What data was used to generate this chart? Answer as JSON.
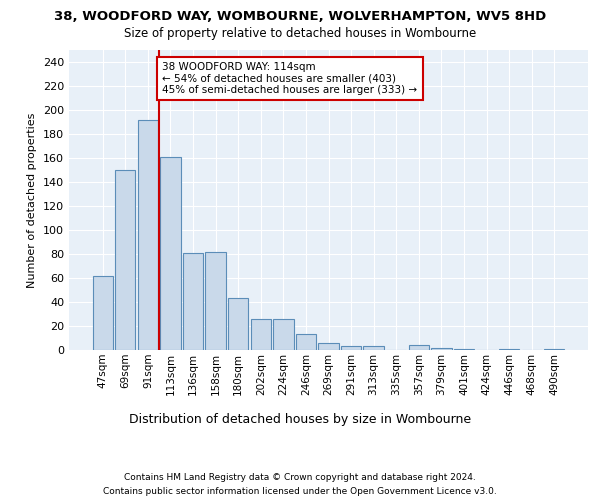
{
  "title_line1": "38, WOODFORD WAY, WOMBOURNE, WOLVERHAMPTON, WV5 8HD",
  "title_line2": "Size of property relative to detached houses in Wombourne",
  "xlabel": "Distribution of detached houses by size in Wombourne",
  "ylabel": "Number of detached properties",
  "categories": [
    "47sqm",
    "69sqm",
    "91sqm",
    "113sqm",
    "136sqm",
    "158sqm",
    "180sqm",
    "202sqm",
    "224sqm",
    "246sqm",
    "269sqm",
    "291sqm",
    "313sqm",
    "335sqm",
    "357sqm",
    "379sqm",
    "401sqm",
    "424sqm",
    "446sqm",
    "468sqm",
    "490sqm"
  ],
  "values": [
    62,
    150,
    192,
    161,
    81,
    82,
    43,
    26,
    26,
    13,
    6,
    3,
    3,
    0,
    4,
    2,
    1,
    0,
    1,
    0,
    1
  ],
  "bar_color": "#c9d9ea",
  "bar_edge_color": "#5b8db8",
  "property_line_x": 2.5,
  "annotation_title": "38 WOODFORD WAY: 114sqm",
  "annotation_line1": "← 54% of detached houses are smaller (403)",
  "annotation_line2": "45% of semi-detached houses are larger (333) →",
  "annotation_box_color": "#ffffff",
  "annotation_box_edge": "#cc0000",
  "property_line_color": "#cc0000",
  "ylim": [
    0,
    250
  ],
  "yticks": [
    0,
    20,
    40,
    60,
    80,
    100,
    120,
    140,
    160,
    180,
    200,
    220,
    240
  ],
  "footnote1": "Contains HM Land Registry data © Crown copyright and database right 2024.",
  "footnote2": "Contains public sector information licensed under the Open Government Licence v3.0.",
  "bg_color": "#e8f0f8",
  "fig_bg_color": "#ffffff"
}
